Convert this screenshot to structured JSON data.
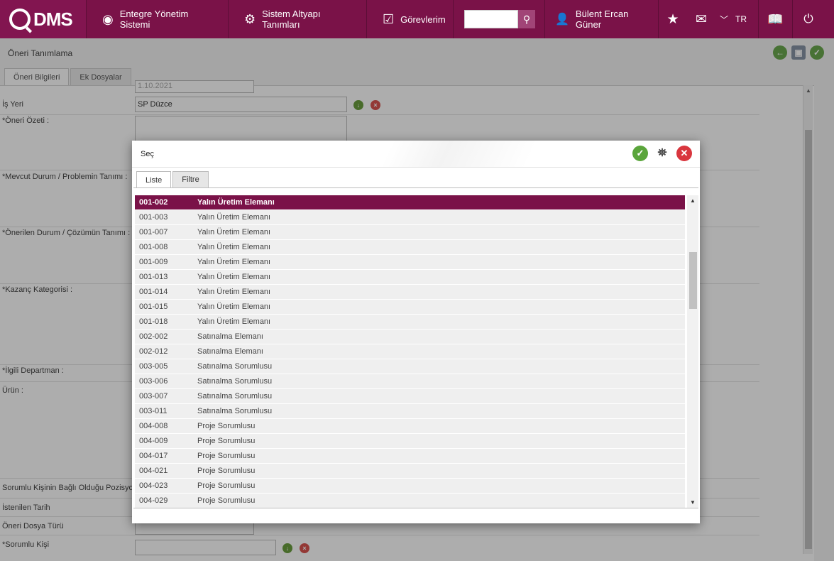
{
  "topbar": {
    "logo_text": "DMS",
    "nav": [
      {
        "label": "Entegre Yönetim Sistemi"
      },
      {
        "label": "Sistem Altyapı Tanımları"
      },
      {
        "label": "Görevlerim"
      }
    ],
    "search_value": "",
    "user_name": "Bülent Ercan Güner",
    "language": "TR",
    "accent_color": "#7a1248"
  },
  "page": {
    "title": "Öneri Tanımlama",
    "tabs": [
      "Öneri Bilgileri",
      "Ek Dosyalar"
    ],
    "date_value": "1.10.2021",
    "fields": {
      "is_yeri_label": "İş Yeri",
      "is_yeri_value": "SP Düzce",
      "oneri_ozeti_label": "*Öneri Özeti :",
      "mevcut_durum_label": "*Mevcut Durum / Problemin Tanımı :",
      "onerilen_durum_label": "*Önerilen Durum / Çözümün Tanımı :",
      "kazanc_label": "*Kazanç Kategorisi :",
      "ilgili_departman_label": "*İlgili Departman :",
      "urun_label": "Ürün :",
      "sorumlu_pozisyon_label": "Sorumlu Kişinin Bağlı Olduğu Pozisyon",
      "istenilen_tarih_label": "İstenilen Tarih",
      "dosya_turu_label": "Öneri Dosya Türü",
      "sorumlu_kisi_label": "*Sorumlu Kişi"
    }
  },
  "modal": {
    "title": "Seç",
    "tabs": [
      "Liste",
      "Filtre"
    ],
    "rows": [
      {
        "code": "001-002",
        "name": "Yalın Üretim Elemanı",
        "selected": true
      },
      {
        "code": "001-003",
        "name": "Yalın Üretim Elemanı"
      },
      {
        "code": "001-007",
        "name": "Yalın Üretim Elemanı"
      },
      {
        "code": "001-008",
        "name": "Yalın Üretim Elemanı"
      },
      {
        "code": "001-009",
        "name": "Yalın Üretim Elemanı"
      },
      {
        "code": "001-013",
        "name": "Yalın Üretim Elemanı"
      },
      {
        "code": "001-014",
        "name": "Yalın Üretim Elemanı"
      },
      {
        "code": "001-015",
        "name": "Yalın Üretim Elemanı"
      },
      {
        "code": "001-018",
        "name": "Yalın Üretim Elemanı"
      },
      {
        "code": "002-002",
        "name": "Satınalma Elemanı"
      },
      {
        "code": "002-012",
        "name": "Satınalma Elemanı"
      },
      {
        "code": "003-005",
        "name": "Satınalma Sorumlusu"
      },
      {
        "code": "003-006",
        "name": "Satınalma Sorumlusu"
      },
      {
        "code": "003-007",
        "name": "Satınalma Sorumlusu"
      },
      {
        "code": "003-011",
        "name": "Satınalma Sorumlusu"
      },
      {
        "code": "004-008",
        "name": "Proje Sorumlusu"
      },
      {
        "code": "004-009",
        "name": "Proje Sorumlusu"
      },
      {
        "code": "004-017",
        "name": "Proje Sorumlusu"
      },
      {
        "code": "004-021",
        "name": "Proje Sorumlusu"
      },
      {
        "code": "004-023",
        "name": "Proje Sorumlusu"
      },
      {
        "code": "004-029",
        "name": "Proje Sorumlusu"
      }
    ]
  }
}
